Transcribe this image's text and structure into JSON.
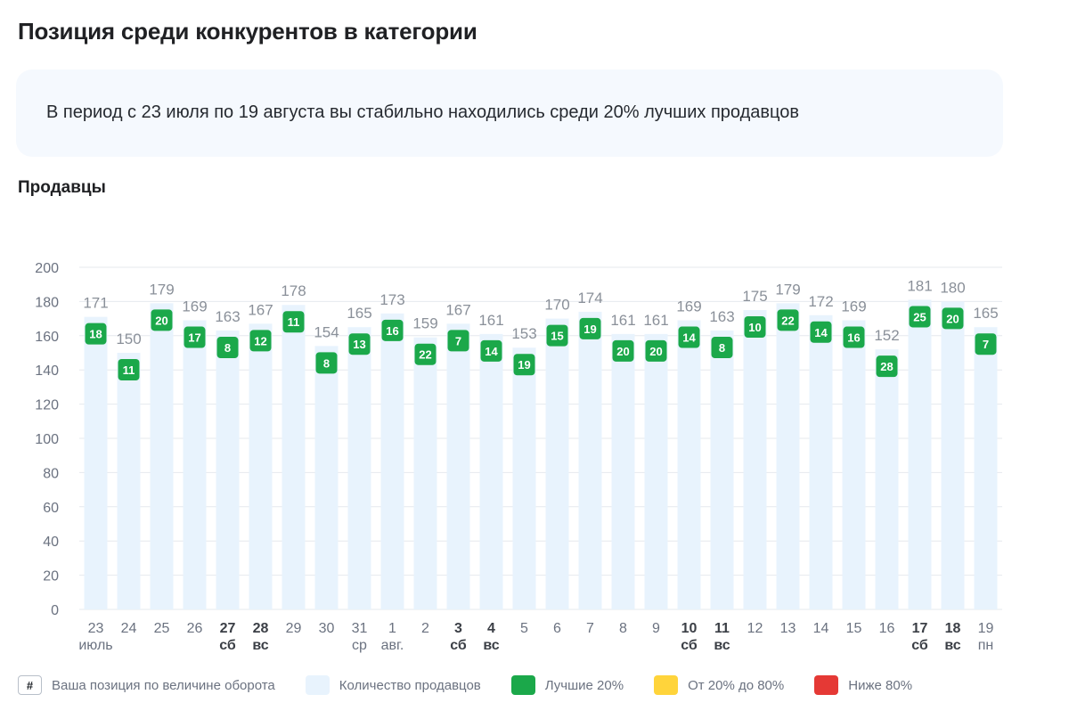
{
  "header": {
    "title": "Позиция среди конкурентов в категории"
  },
  "summary": {
    "text": "В период с 23 июля по 19 августа вы стабильно находились среди 20% лучших продавцов"
  },
  "section": {
    "title": "Продавцы"
  },
  "legend": {
    "position_marker": "#",
    "position_label": "Ваша позиция по величине оборота",
    "count_label": "Количество продавцов",
    "top_label": "Лучшие 20%",
    "mid_label": "От 20% до 80%",
    "low_label": "Ниже 80%"
  },
  "colors": {
    "bar": "#e8f3fd",
    "top": "#1ba84a",
    "mid": "#ffd43b",
    "low": "#e53935",
    "grid": "#e6e9ee",
    "axis_text": "#6b7280"
  },
  "chart_data": {
    "type": "bar",
    "ylim": [
      0,
      200
    ],
    "yticks": [
      0,
      20,
      40,
      60,
      80,
      100,
      120,
      140,
      160,
      180,
      200
    ],
    "grid": true,
    "legend_position": "bottom",
    "categories": [
      {
        "day": "23",
        "sub": "июль",
        "weekend": false
      },
      {
        "day": "24",
        "sub": "",
        "weekend": false
      },
      {
        "day": "25",
        "sub": "",
        "weekend": false
      },
      {
        "day": "26",
        "sub": "",
        "weekend": false
      },
      {
        "day": "27",
        "sub": "сб",
        "weekend": true
      },
      {
        "day": "28",
        "sub": "вс",
        "weekend": true
      },
      {
        "day": "29",
        "sub": "",
        "weekend": false
      },
      {
        "day": "30",
        "sub": "",
        "weekend": false
      },
      {
        "day": "31",
        "sub": "ср",
        "weekend": false
      },
      {
        "day": "1",
        "sub": "авг.",
        "weekend": false
      },
      {
        "day": "2",
        "sub": "",
        "weekend": false
      },
      {
        "day": "3",
        "sub": "сб",
        "weekend": true
      },
      {
        "day": "4",
        "sub": "вс",
        "weekend": true
      },
      {
        "day": "5",
        "sub": "",
        "weekend": false
      },
      {
        "day": "6",
        "sub": "",
        "weekend": false
      },
      {
        "day": "7",
        "sub": "",
        "weekend": false
      },
      {
        "day": "8",
        "sub": "",
        "weekend": false
      },
      {
        "day": "9",
        "sub": "",
        "weekend": false
      },
      {
        "day": "10",
        "sub": "сб",
        "weekend": true
      },
      {
        "day": "11",
        "sub": "вс",
        "weekend": true
      },
      {
        "day": "12",
        "sub": "",
        "weekend": false
      },
      {
        "day": "13",
        "sub": "",
        "weekend": false
      },
      {
        "day": "14",
        "sub": "",
        "weekend": false
      },
      {
        "day": "15",
        "sub": "",
        "weekend": false
      },
      {
        "day": "16",
        "sub": "",
        "weekend": false
      },
      {
        "day": "17",
        "sub": "сб",
        "weekend": true
      },
      {
        "day": "18",
        "sub": "вс",
        "weekend": true
      },
      {
        "day": "19",
        "sub": "пн",
        "weekend": false
      }
    ],
    "series": [
      {
        "name": "Количество продавцов",
        "values": [
          171,
          150,
          179,
          169,
          163,
          167,
          178,
          154,
          165,
          173,
          159,
          167,
          161,
          153,
          170,
          174,
          161,
          161,
          169,
          163,
          175,
          179,
          172,
          169,
          152,
          181,
          180,
          165
        ]
      },
      {
        "name": "Ваша позиция по величине оборота",
        "values": [
          18,
          11,
          20,
          17,
          8,
          12,
          11,
          8,
          13,
          16,
          22,
          7,
          14,
          19,
          15,
          19,
          20,
          20,
          14,
          8,
          10,
          22,
          14,
          16,
          28,
          25,
          20,
          7
        ]
      }
    ]
  }
}
